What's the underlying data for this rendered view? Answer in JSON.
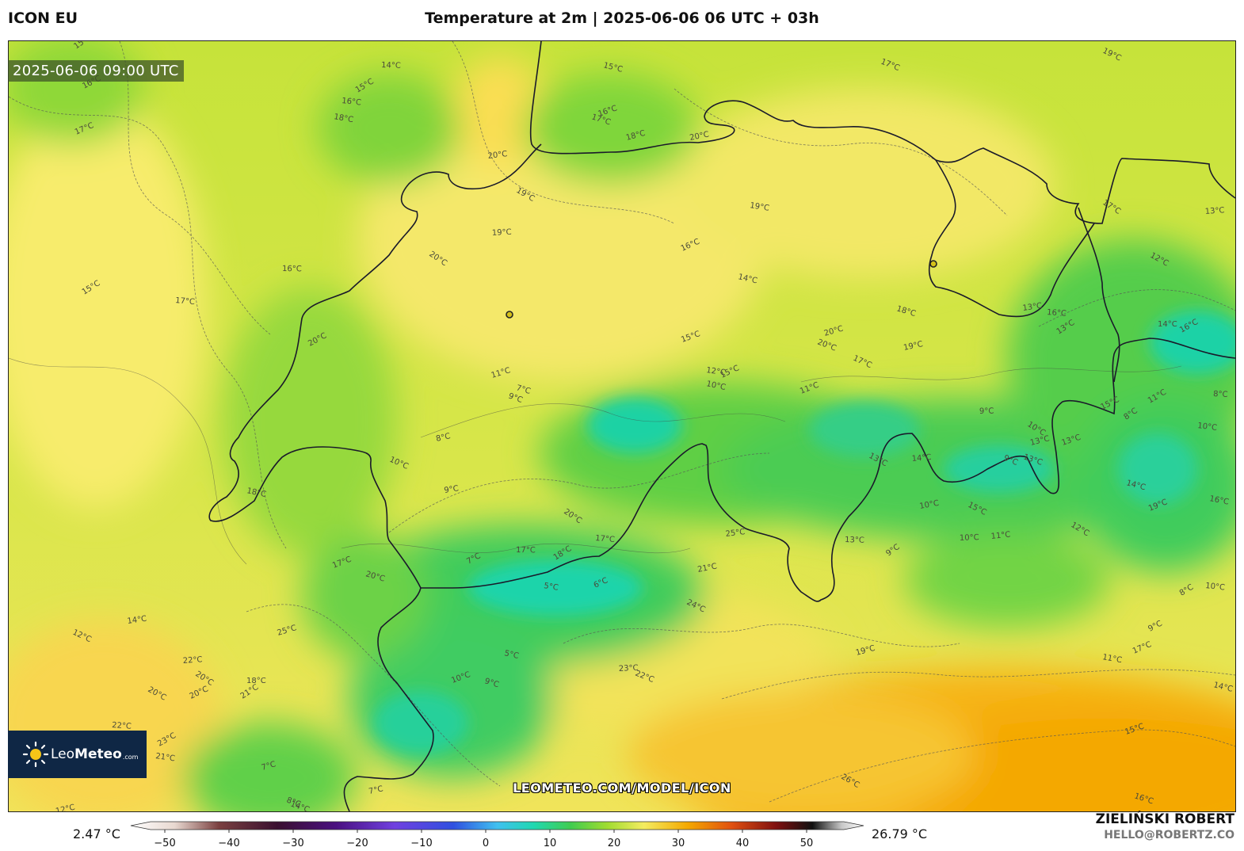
{
  "header": {
    "model": "ICON EU",
    "title": "Temperature at 2m | 2025-06-06 06 UTC + 03h"
  },
  "map": {
    "valid_time": "2025-06-06 09:00 UTC",
    "watermark": "LEOMETEO.COM/MODEL/ICON",
    "logo": {
      "brand_light": "Leo",
      "brand_bold": "Meteo",
      "suffix": ".com"
    },
    "isotherm_labels": [
      "15°C",
      "14°C",
      "15°C",
      "16°C",
      "16°C",
      "18°C",
      "17°C",
      "15°C",
      "16°C",
      "17°C",
      "18°C",
      "17°C",
      "20°C",
      "19°C",
      "20°C",
      "19°C",
      "19°C",
      "20°C",
      "16°C",
      "15°C",
      "17°C",
      "20°C",
      "19°C",
      "16°C",
      "14°C",
      "15°C",
      "18°C",
      "20°C",
      "20°C",
      "19°C",
      "17°C",
      "13°C",
      "12°C",
      "13°C",
      "17°C",
      "14°C",
      "13°C",
      "16°C",
      "16°C",
      "12°C",
      "15°C",
      "10°C",
      "11°C",
      "7°C",
      "11°C",
      "9°C",
      "8°C",
      "10°C",
      "9°C",
      "13°C",
      "14°C",
      "10°C",
      "9°C",
      "8°C",
      "8°C",
      "11°C",
      "10°C",
      "15°C",
      "16°C",
      "19°C",
      "14°C",
      "13°C",
      "13°C",
      "13°C",
      "9°C",
      "10°C",
      "15°C",
      "11°C",
      "12°C",
      "10°C",
      "9°C",
      "13°C",
      "8°C",
      "10°C",
      "9°C",
      "11°C",
      "17°C",
      "14°C",
      "15°C",
      "16°C",
      "19°C",
      "22°C",
      "21°C",
      "24°C",
      "25°C",
      "26°C",
      "23°C",
      "20°C",
      "17°C",
      "18°C",
      "17°C",
      "7°C",
      "5°C",
      "6°C",
      "5°C",
      "10°C",
      "9°C",
      "7°C",
      "8°C",
      "7°C",
      "12°C",
      "14°C",
      "20°C",
      "22°C",
      "20°C",
      "18°C",
      "21°C",
      "22°C",
      "23°C",
      "21°C",
      "20°C",
      "18°C",
      "17°C",
      "20°C",
      "25°C",
      "14°C",
      "12°C"
    ],
    "colors": {
      "cold": "#17d6a6",
      "mid": "#8fd93a",
      "warm": "#f6e86a",
      "hot": "#f5a500"
    }
  },
  "legend": {
    "min_value": "2.47 °C",
    "max_value": "26.79 °C",
    "ticks": [
      "−50",
      "−40",
      "−30",
      "−20",
      "−10",
      "0",
      "10",
      "20",
      "30",
      "40",
      "50"
    ]
  },
  "credits": {
    "author": "ZIELIŃSKI ROBERT",
    "email": "HELLO@ROBERTZ.CO"
  }
}
